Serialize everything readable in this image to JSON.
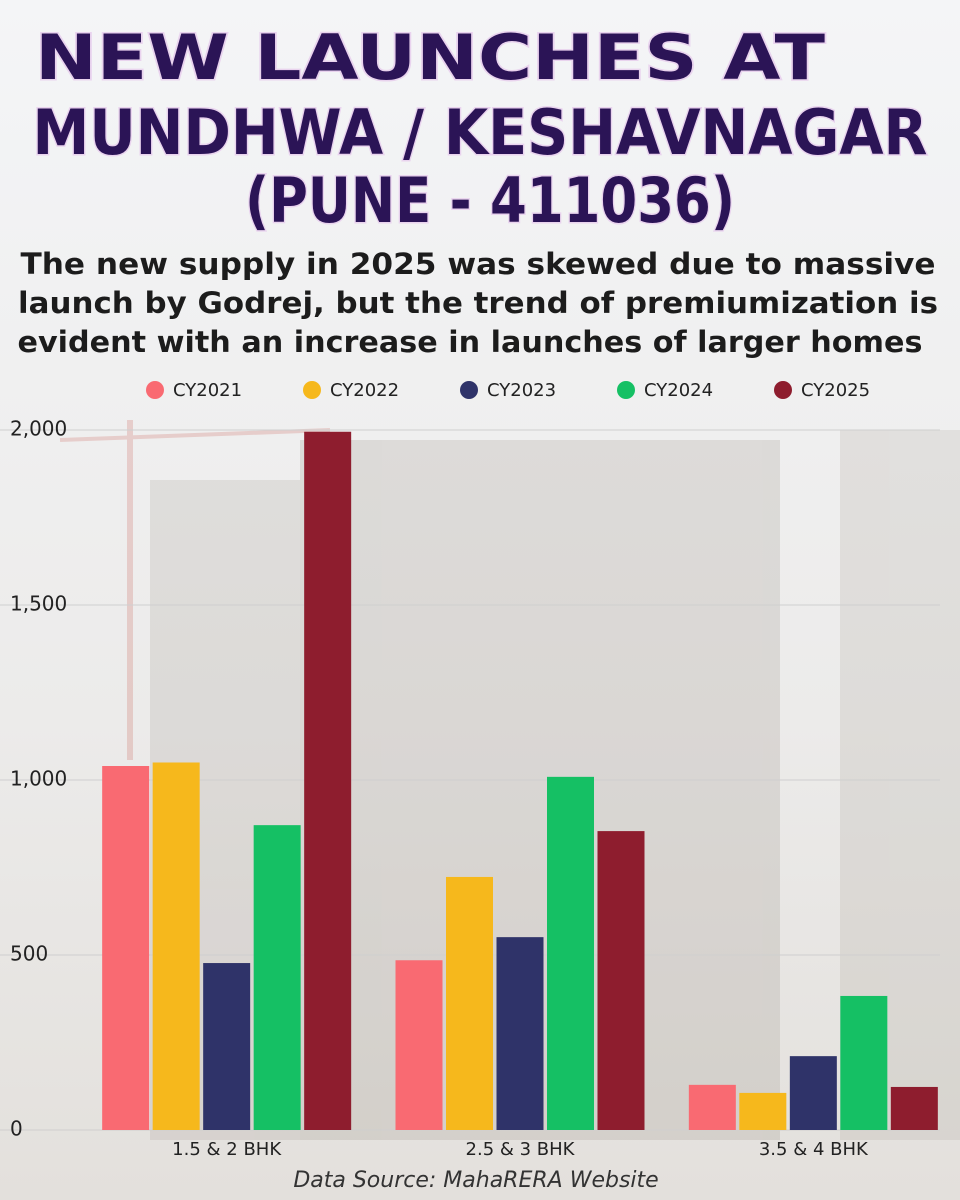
{
  "title_lines": [
    "NEW LAUNCHES AT",
    "MUNDHWA / KESHAVNAGAR",
    "(PUNE - 411036)"
  ],
  "subtitle_lines": [
    "The new supply in 2025 was skewed due to massive",
    "launch by Godrej, but the trend of premiumization is",
    "evident with an increase in launches of larger homes"
  ],
  "source": "Data Source: MahaRERA Website",
  "chart_data": {
    "type": "bar",
    "categories": [
      "1.5 & 2 BHK",
      "2.5 & 3 BHK",
      "3.5 & 4 BHK"
    ],
    "series": [
      {
        "name": "CY2021",
        "color": "#f96a72",
        "values": [
          1040,
          485,
          129
        ]
      },
      {
        "name": "CY2022",
        "color": "#f6b81c",
        "values": [
          1050,
          723,
          106
        ]
      },
      {
        "name": "CY2023",
        "color": "#2f3369",
        "values": [
          477,
          551,
          211
        ]
      },
      {
        "name": "CY2024",
        "color": "#15c064",
        "values": [
          871,
          1009,
          383
        ]
      },
      {
        "name": "CY2025",
        "color": "#8e1d2e",
        "values": [
          1995,
          854,
          123
        ]
      }
    ],
    "ylim": [
      0,
      2000
    ],
    "yticks": [
      0,
      500,
      {
        "value": 1000,
        "label": "1,000"
      },
      {
        "value": 1500,
        "label": "1,500"
      },
      {
        "value": 2000,
        "label": "2,000"
      }
    ],
    "grid": true,
    "legend": "top"
  }
}
